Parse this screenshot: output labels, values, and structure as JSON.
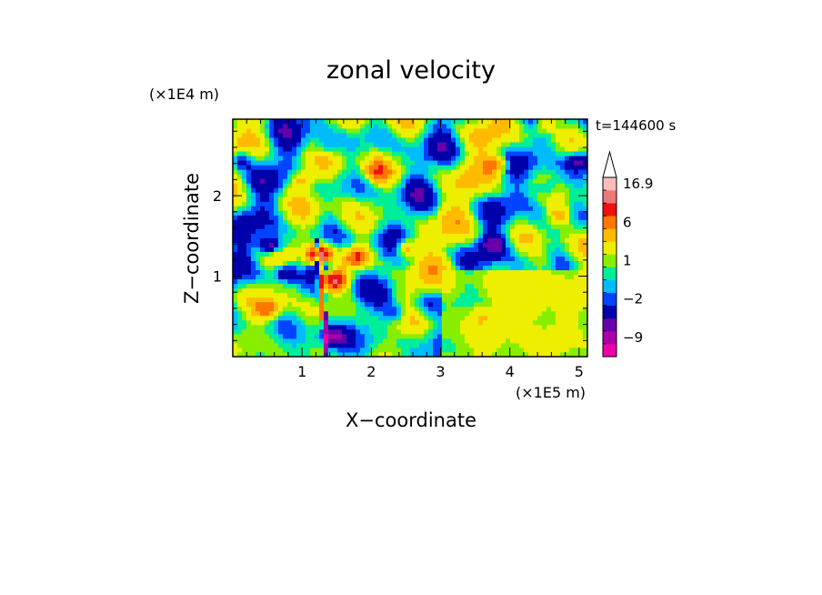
{
  "chart_data": {
    "type": "heatmap",
    "title": "zonal velocity",
    "xlabel": "X−coordinate",
    "ylabel": "Z−coordinate",
    "x_scale_label": "(×1E5 m)",
    "y_scale_label": "(×1E4 m)",
    "time_label": "t=144600 s",
    "xlim": [
      0,
      5.12
    ],
    "ylim": [
      0,
      2.95
    ],
    "x_ticks": [
      {
        "value": 1,
        "label": "1"
      },
      {
        "value": 2,
        "label": "2"
      },
      {
        "value": 3,
        "label": "3"
      },
      {
        "value": 4,
        "label": "4"
      },
      {
        "value": 5,
        "label": "5"
      }
    ],
    "y_ticks": [
      {
        "value": 1,
        "label": "1"
      },
      {
        "value": 2,
        "label": "2"
      }
    ],
    "colorbar": {
      "levels": [
        -12,
        -9,
        -6,
        -4,
        -2,
        -1,
        0,
        1,
        2,
        4,
        6,
        9,
        12,
        16.9
      ],
      "tick_labels": [
        {
          "value": 16.9,
          "label": "16.9"
        },
        {
          "value": 6,
          "label": "6"
        },
        {
          "value": 1,
          "label": "1"
        },
        {
          "value": -2,
          "label": "−2"
        },
        {
          "value": -9,
          "label": "−9"
        }
      ],
      "colors": [
        "#ee00aa",
        "#aa00aa",
        "#6600aa",
        "#0000aa",
        "#0044ff",
        "#00bbff",
        "#00ee99",
        "#88ee00",
        "#eeee00",
        "#ffbb00",
        "#ff7700",
        "#ee1111",
        "#ee7777",
        "#ffbbbb"
      ],
      "extend_max": true
    },
    "features": [
      {
        "x": 1.3,
        "z": 1.15,
        "u": -10
      },
      {
        "x": 0.55,
        "z": 1.38,
        "u": -8
      },
      {
        "x": 0.75,
        "z": 1.05,
        "u": -6
      },
      {
        "x": 0.1,
        "z": 2.45,
        "u": -5
      },
      {
        "x": 5.0,
        "z": 2.45,
        "u": -5
      },
      {
        "x": 4.55,
        "z": 2.1,
        "u": -4
      },
      {
        "x": 1.45,
        "z": 0.25,
        "u": -6
      },
      {
        "x": 2.35,
        "z": 0.55,
        "u": -4
      },
      {
        "x": 2.75,
        "z": 0.65,
        "u": -3
      },
      {
        "x": 3.75,
        "z": 1.42,
        "u": -4
      },
      {
        "x": 1.3,
        "z": 2.6,
        "u": -3
      },
      {
        "x": 1.45,
        "z": 0.95,
        "u": 12
      },
      {
        "x": 1.25,
        "z": 1.25,
        "u": 15
      },
      {
        "x": 1.8,
        "z": 1.25,
        "u": 8
      },
      {
        "x": 2.5,
        "z": 1.35,
        "u": 7
      },
      {
        "x": 0.5,
        "z": 0.6,
        "u": 6
      },
      {
        "x": 4.5,
        "z": 2.9,
        "u": 6
      },
      {
        "x": 4.7,
        "z": 1.75,
        "u": 5
      },
      {
        "x": 2.1,
        "z": 2.3,
        "u": 6
      },
      {
        "x": 3.8,
        "z": 2.4,
        "u": 6
      },
      {
        "x": 1.0,
        "z": 2.2,
        "u": 5
      },
      {
        "x": 3.6,
        "z": 0.5,
        "u": 2.5
      },
      {
        "x": 4.3,
        "z": 0.6,
        "u": 2.5
      },
      {
        "x": 4.5,
        "z": 1.2,
        "u": 1.5
      }
    ]
  }
}
